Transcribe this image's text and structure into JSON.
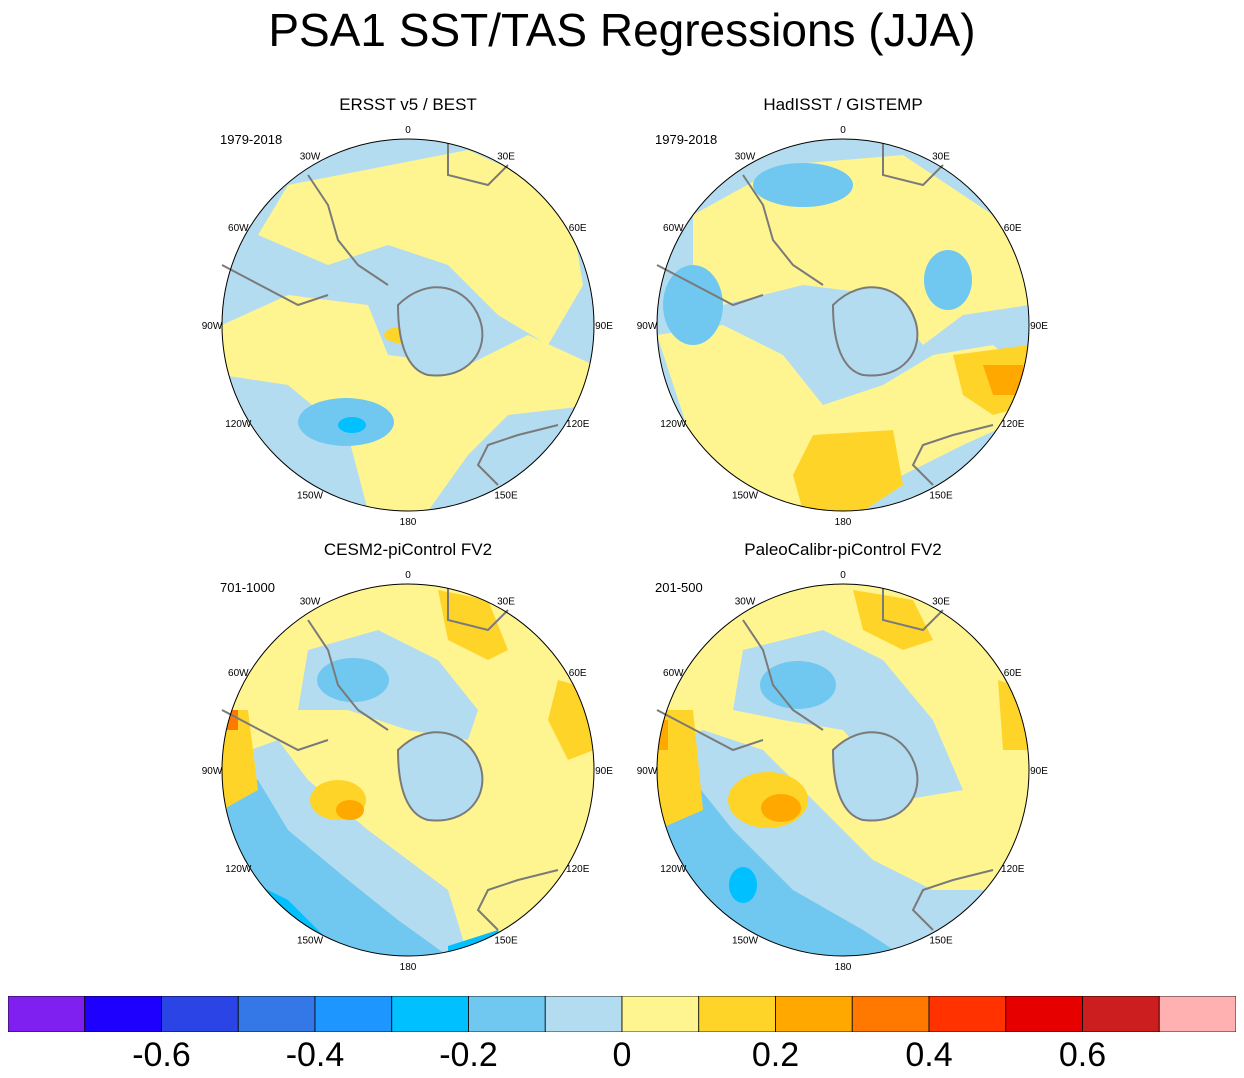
{
  "title": "PSA1 SST/TAS Regressions (JJA)",
  "lon_labels": [
    "0",
    "30E",
    "60E",
    "90E",
    "120E",
    "150E",
    "180",
    "150W",
    "120W",
    "90W",
    "60W",
    "30W"
  ],
  "panels": [
    {
      "title": "ERSST v5 / BEST",
      "period": "1979-2018"
    },
    {
      "title": "HadISST / GISTEMP",
      "period": "1979-2018"
    },
    {
      "title": "CESM2-piControl FV2",
      "period": "701-1000"
    },
    {
      "title": "PaleoCalibr-piControl FV2",
      "period": "201-500"
    }
  ],
  "colorbar": {
    "colors": [
      "#8020f0",
      "#1e00ff",
      "#2a44e6",
      "#3378e6",
      "#1e96ff",
      "#00c0ff",
      "#70c8f0",
      "#b4dcf0",
      "#fff590",
      "#ffd428",
      "#ffa800",
      "#ff7800",
      "#ff3200",
      "#e60000",
      "#cc1e1e",
      "#ffb0b0"
    ],
    "labels": [
      "-0.6",
      "-0.4",
      "-0.2",
      "0",
      "0.2",
      "0.4",
      "0.6"
    ]
  },
  "palette": {
    "light_blue": "#b4dcf0",
    "mid_blue": "#70c8f0",
    "bright_blue": "#00c0ff",
    "light_yellow": "#fff590",
    "yellow": "#ffd428",
    "orange": "#ffa800",
    "dark_orange": "#ff7800",
    "land_outline": "#7a7a7a"
  }
}
